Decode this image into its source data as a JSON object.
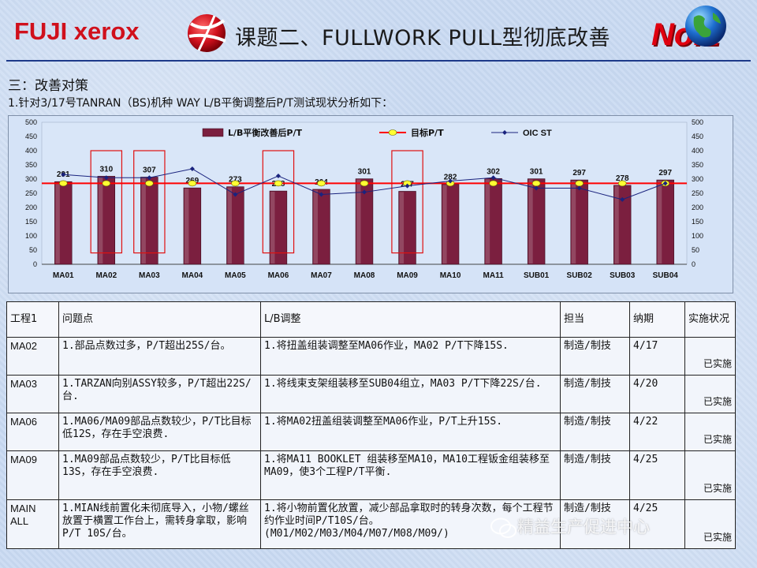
{
  "header": {
    "logo_text": "FUJI xerox",
    "title": "课题二、FULLWORK PULL型彻底改善",
    "slide_number": "No.1"
  },
  "section": {
    "title": "三：改善对策",
    "subtitle": "1.针对3/17号TANRAN（BS)机种 WAY L/B平衡调整后P/T测试现状分析如下："
  },
  "chart_data": {
    "type": "bar",
    "categories": [
      "MA01",
      "MA02",
      "MA03",
      "MA04",
      "MA05",
      "MA06",
      "MA07",
      "MA08",
      "MA09",
      "MA10",
      "MA11",
      "SUB01",
      "SUB02",
      "SUB03",
      "SUB04"
    ],
    "series": [
      {
        "name": "L/B平衡改善后P/T",
        "type": "bar",
        "values": [
          291,
          310,
          307,
          269,
          273,
          258,
          264,
          301,
          257,
          282,
          302,
          301,
          297,
          278,
          297
        ]
      },
      {
        "name": "目标P/T",
        "type": "line",
        "values": [
          285,
          285,
          285,
          285,
          285,
          285,
          285,
          285,
          285,
          285,
          285,
          285,
          285,
          285,
          285
        ]
      },
      {
        "name": "OIC ST",
        "type": "line",
        "values": [
          316,
          305,
          305,
          336,
          246,
          311,
          246,
          254,
          276,
          293,
          305,
          268,
          268,
          228,
          285
        ]
      }
    ],
    "ylim": [
      0,
      500
    ],
    "yticks": [
      0,
      50,
      100,
      150,
      200,
      250,
      300,
      350,
      400,
      450,
      500
    ],
    "y2ticks": [
      0,
      50,
      100,
      150,
      200,
      250,
      300,
      350,
      400,
      450,
      500
    ],
    "highlighted": [
      "MA02",
      "MA03",
      "MA06",
      "MA09"
    ],
    "legend_position": "top",
    "colors": {
      "bar": "#7b1f3f",
      "target": "#ff0000",
      "target_marker": "#ffff33",
      "oic": "#1a237e"
    }
  },
  "table": {
    "headers": [
      "工程1",
      "问题点",
      "L/B调整",
      "担当",
      "纳期",
      "实施状况"
    ],
    "rows": [
      {
        "proc": "MA02",
        "problem": "1.部品点数过多，P/T超出25S/台。",
        "adjust": "1.将扭盖组装调整至MA06作业，MA02 P/T下降15S.",
        "owner": "制造/制技",
        "due": "4/17",
        "status": "已实施"
      },
      {
        "proc": "MA03",
        "problem": "1.TARZAN向别ASSY较多，P/T超出22S/台.",
        "adjust": "1.将线束支架组装移至SUB04组立，MA03 P/T下降22S/台.",
        "owner": "制造/制技",
        "due": "4/20",
        "status": "已实施"
      },
      {
        "proc": "MA06",
        "problem": "1.MA06/MA09部品点数较少，P/T比目标低12S，存在手空浪费.",
        "adjust": "1.将MA02扭盖组装调整至MA06作业，P/T上升15S.",
        "owner": "制造/制技",
        "due": "4/22",
        "status": "已实施"
      },
      {
        "proc": "MA09",
        "problem": "1.MA09部品点数较少，P/T比目标低13S，存在手空浪费.",
        "adjust": "1.将MA11 BOOKLET 组装移至MA10，MA10工程钣金组装移至MA09，使3个工程P/T平衡.",
        "owner": "制造/制技",
        "due": "4/25",
        "status": "已实施"
      },
      {
        "proc": "MAIN ALL",
        "problem": "1.MIAN线前置化未彻底导入，小物/螺丝放置于横置工作台上，需转身拿取，影响P/T  10S/台。",
        "adjust": "1.将小物前置化放置，减少部品拿取时的转身次数，每个工程节约作业时间P/T10S/台。(M01/M02/M03/M04/M07/M08/M09/)",
        "owner": "制造/制技",
        "due": "4/25",
        "status": "已实施"
      }
    ]
  },
  "watermark": "精益生产促进中心"
}
